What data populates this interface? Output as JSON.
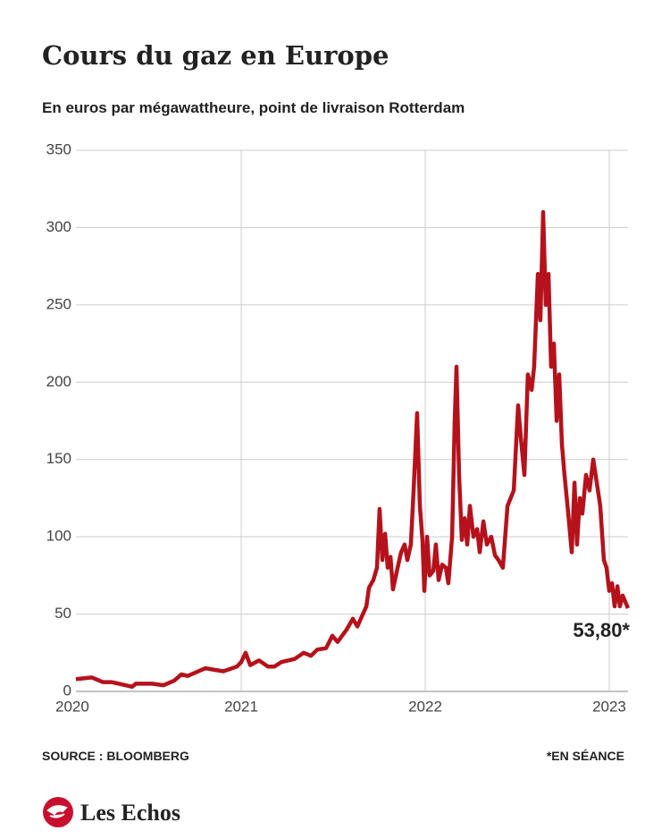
{
  "brand": "Les Echos",
  "chart_data": {
    "type": "line",
    "title": "Cours du gaz en Europe",
    "subtitle": "En euros par mégawattheure, point de livraison Rotterdam",
    "source": "SOURCE : BLOOMBERG",
    "note": "*EN SÉANCE",
    "x": [
      2020.102,
      2020.189,
      2020.248,
      2020.296,
      2020.408,
      2020.427,
      2020.515,
      2020.578,
      2020.636,
      2020.675,
      2020.709,
      2020.806,
      2020.903,
      2020.976,
      2021.0,
      2021.024,
      2021.049,
      2021.097,
      2021.146,
      2021.18,
      2021.218,
      2021.291,
      2021.34,
      2021.379,
      2021.413,
      2021.461,
      2021.495,
      2021.524,
      2021.573,
      2021.607,
      2021.631,
      2021.68,
      2021.694,
      2021.718,
      2021.738,
      2021.752,
      2021.767,
      2021.782,
      2021.796,
      2021.811,
      2021.825,
      2021.85,
      2021.869,
      2021.888,
      2021.903,
      2021.922,
      2021.937,
      2021.956,
      2021.971,
      2021.985,
      2021.995,
      2022.01,
      2022.024,
      2022.044,
      2022.058,
      2022.073,
      2022.092,
      2022.112,
      2022.126,
      2022.146,
      2022.16,
      2022.17,
      2022.184,
      2022.199,
      2022.214,
      2022.228,
      2022.243,
      2022.262,
      2022.282,
      2022.296,
      2022.316,
      2022.335,
      2022.359,
      2022.379,
      2022.398,
      2022.422,
      2022.447,
      2022.481,
      2022.505,
      2022.519,
      2022.539,
      2022.558,
      2022.578,
      2022.592,
      2022.612,
      2022.626,
      2022.641,
      2022.655,
      2022.67,
      2022.684,
      2022.699,
      2022.714,
      2022.728,
      2022.743,
      2022.757,
      2022.777,
      2022.796,
      2022.811,
      2022.825,
      2022.84,
      2022.854,
      2022.874,
      2022.893,
      2022.913,
      2022.932,
      2022.951,
      2022.971,
      2022.985,
      2023.0,
      2023.015,
      2023.029,
      2023.044,
      2023.058,
      2023.073,
      2023.102
    ],
    "series": [
      {
        "name": "Cours du gaz",
        "color": "#b5121b",
        "values": [
          8,
          9,
          6,
          6,
          3,
          5,
          5,
          4,
          7,
          11,
          10,
          15,
          13,
          16,
          19,
          25,
          17,
          20,
          16,
          16,
          19,
          21,
          25,
          23,
          27,
          28,
          36,
          32,
          40,
          47,
          42,
          55,
          67,
          72,
          80,
          118,
          85,
          102,
          80,
          87,
          66,
          80,
          90,
          95,
          85,
          95,
          130,
          180,
          120,
          98,
          65,
          100,
          75,
          78,
          95,
          72,
          82,
          80,
          70,
          100,
          175,
          210,
          140,
          98,
          112,
          95,
          120,
          100,
          105,
          90,
          110,
          95,
          100,
          88,
          85,
          80,
          120,
          130,
          185,
          165,
          140,
          205,
          195,
          210,
          270,
          240,
          310,
          250,
          270,
          210,
          225,
          175,
          205,
          160,
          140,
          115,
          90,
          135,
          95,
          125,
          115,
          140,
          130,
          150,
          135,
          120,
          85,
          80,
          65,
          70,
          55,
          68,
          55,
          62,
          53.8
        ],
        "value_labels": [
          null,
          null,
          null,
          null,
          null,
          null,
          null,
          null,
          null,
          null,
          null,
          null,
          null,
          null,
          null,
          null,
          null,
          null,
          null,
          null,
          null,
          null,
          null,
          null,
          null,
          null,
          null,
          null,
          null,
          null,
          null,
          null,
          null,
          null,
          null,
          null,
          null,
          null,
          null,
          null,
          null,
          null,
          null,
          null,
          null,
          null,
          null,
          null,
          null,
          null,
          null,
          null,
          null,
          null,
          null,
          null,
          null,
          null,
          null,
          null,
          null,
          null,
          null,
          null,
          null,
          null,
          null,
          null,
          null,
          null,
          null,
          null,
          null,
          null,
          null,
          null,
          null,
          null,
          null,
          null,
          null,
          null,
          null,
          null,
          null,
          null,
          null,
          null,
          null,
          null,
          null,
          null,
          null,
          null,
          null,
          null,
          null,
          null,
          null,
          null,
          null,
          null,
          null,
          null,
          null,
          null,
          null,
          null,
          null,
          null,
          null,
          null,
          null,
          null,
          "53,80*"
        ]
      }
    ],
    "xlim": [
      2020,
      2023.102
    ],
    "xticks": [
      2020,
      2021,
      2022,
      2023
    ],
    "ylim": [
      0,
      350
    ],
    "yticks": [
      0,
      50,
      100,
      150,
      200,
      250,
      300,
      350
    ],
    "grid": true
  }
}
